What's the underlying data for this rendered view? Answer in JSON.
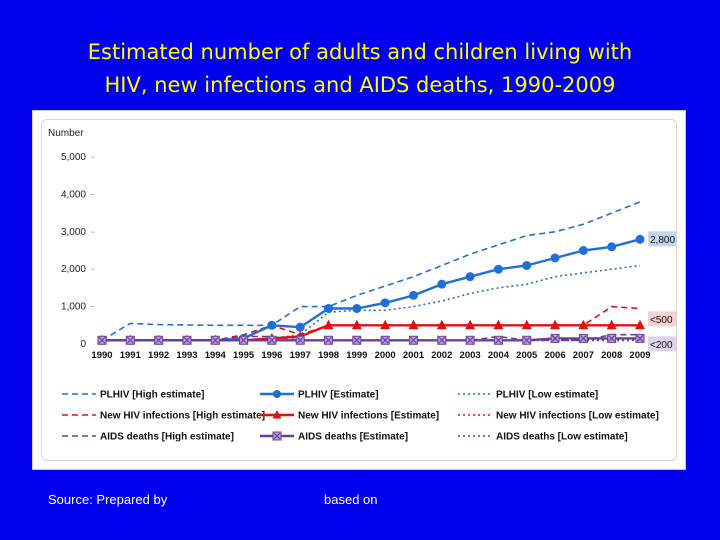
{
  "slide": {
    "title_line1": "Estimated number of adults and children living with",
    "title_line2": "HIV, new infections and AIDS deaths, 1990-2009",
    "source_label": "Source: Prepared by",
    "based_on_label": "based on"
  },
  "colors": {
    "background": "#0000ee",
    "title": "#ffff00",
    "plhiv": "#1f6fd6",
    "new_infections": "#e01010",
    "aids_deaths": "#6a3d9a"
  },
  "chart_data": {
    "type": "line",
    "ylabel": "Number",
    "ylim": [
      0,
      5000
    ],
    "yticks": [
      {
        "value": 0,
        "label": "0"
      },
      {
        "value": 1000,
        "label": "1,000"
      },
      {
        "value": 2000,
        "label": "2,000"
      },
      {
        "value": 3000,
        "label": "3,000"
      },
      {
        "value": 4000,
        "label": "4,000"
      },
      {
        "value": 5000,
        "label": "5,000"
      }
    ],
    "x": [
      "1990",
      "1991",
      "1992",
      "1993",
      "1994",
      "1995",
      "1996",
      "1997",
      "1998",
      "1999",
      "2000",
      "2001",
      "2002",
      "2003",
      "2004",
      "2005",
      "2006",
      "2007",
      "2008",
      "2009"
    ],
    "grid": false,
    "legend_position": "bottom",
    "series": [
      {
        "name": "PLHIV [High estimate]",
        "color": "#1f6fd6",
        "style": "dashed",
        "marker": "none",
        "values": [
          100,
          550,
          520,
          510,
          500,
          500,
          500,
          1000,
          1000,
          1300,
          1550,
          1800,
          2100,
          2400,
          2650,
          2900,
          3000,
          3200,
          3500,
          3800
        ]
      },
      {
        "name": "PLHIV [Estimate]",
        "color": "#1f6fd6",
        "style": "solid",
        "marker": "circle",
        "values": [
          100,
          100,
          100,
          100,
          100,
          150,
          500,
          450,
          950,
          950,
          1100,
          1300,
          1600,
          1800,
          2000,
          2100,
          2300,
          2500,
          2600,
          2800
        ]
      },
      {
        "name": "PLHIV [Low estimate]",
        "color": "#1f6fd6",
        "style": "dotted",
        "marker": "none",
        "values": [
          100,
          100,
          100,
          100,
          100,
          100,
          150,
          250,
          850,
          900,
          900,
          1000,
          1150,
          1350,
          1500,
          1600,
          1800,
          1900,
          2000,
          2100
        ]
      },
      {
        "name": "New HIV infections [High estimate]",
        "color": "#e01010",
        "style": "dashed",
        "marker": "none",
        "values": [
          100,
          100,
          100,
          100,
          100,
          250,
          500,
          250,
          500,
          500,
          500,
          500,
          500,
          500,
          500,
          500,
          500,
          500,
          1000,
          950
        ]
      },
      {
        "name": "New HIV infections [Estimate]",
        "color": "#e01010",
        "style": "solid",
        "marker": "triangle",
        "values": [
          100,
          100,
          100,
          100,
          100,
          100,
          150,
          200,
          500,
          500,
          500,
          500,
          500,
          500,
          500,
          500,
          500,
          500,
          500,
          500
        ]
      },
      {
        "name": "New HIV infections [Low estimate]",
        "color": "#e01010",
        "style": "dotted",
        "marker": "none",
        "values": [
          100,
          100,
          100,
          100,
          100,
          100,
          100,
          100,
          100,
          100,
          100,
          100,
          100,
          100,
          100,
          100,
          100,
          100,
          100,
          100
        ]
      },
      {
        "name": "AIDS deaths [High estimate]",
        "color": "#6a3d9a",
        "style": "dashed",
        "marker": "none",
        "values": [
          100,
          100,
          100,
          100,
          100,
          200,
          200,
          100,
          100,
          100,
          100,
          100,
          100,
          100,
          200,
          100,
          100,
          100,
          250,
          250
        ]
      },
      {
        "name": "AIDS deaths [Estimate]",
        "color": "#6a3d9a",
        "style": "solid",
        "marker": "x-square",
        "values": [
          100,
          100,
          100,
          100,
          100,
          100,
          100,
          100,
          100,
          100,
          100,
          100,
          100,
          100,
          100,
          100,
          150,
          150,
          150,
          150
        ]
      },
      {
        "name": "AIDS deaths [Low estimate]",
        "color": "#6a3d9a",
        "style": "dotted",
        "marker": "none",
        "values": [
          100,
          100,
          100,
          100,
          100,
          100,
          100,
          100,
          100,
          100,
          100,
          100,
          100,
          100,
          100,
          100,
          100,
          100,
          100,
          100
        ]
      }
    ],
    "annotations": [
      {
        "text": "2,800",
        "series": "PLHIV [Estimate]",
        "bg": "#c5d5ee"
      },
      {
        "text": "<500",
        "series": "New HIV infections [Estimate]",
        "bg": "#f5d0d0"
      },
      {
        "text": "<200",
        "series": "AIDS deaths [Estimate]",
        "bg": "#ddd3ea"
      }
    ]
  }
}
